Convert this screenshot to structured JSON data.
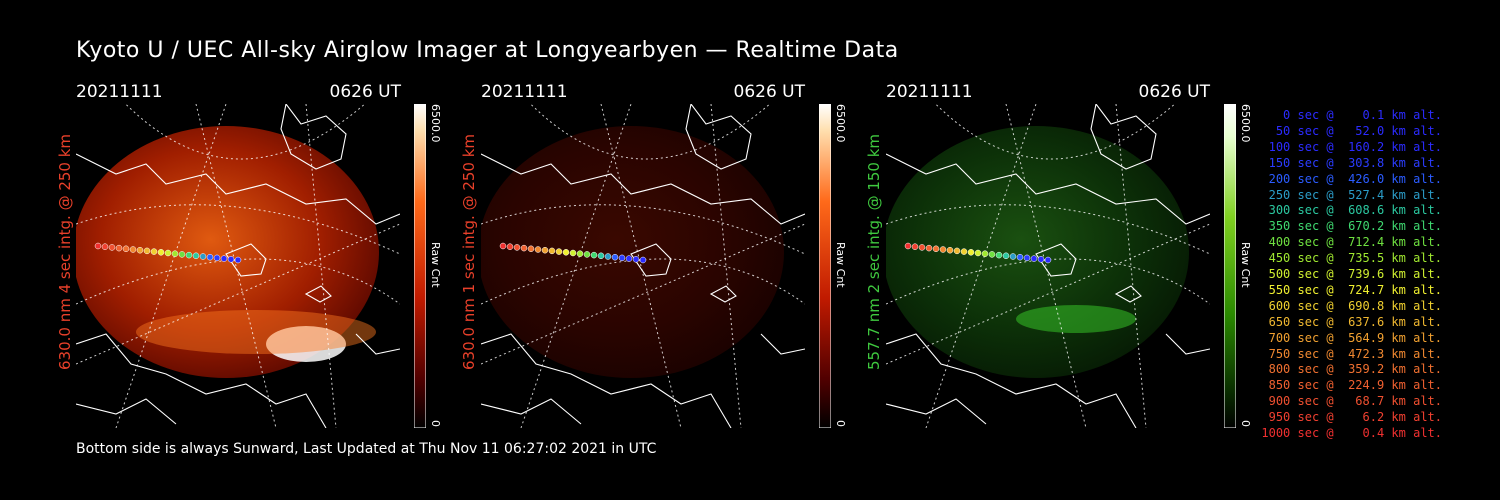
{
  "title": "Kyoto U / UEC All-sky Airglow Imager at Longyearbyen — Realtime Data",
  "footer": "Bottom side is always Sunward, Last Updated at Thu Nov 11 06:27:02 2021 in UTC",
  "panels": [
    {
      "date": "20211111",
      "time": "0626 UT",
      "side_label": "630.0 nm 4 sec intg. @ 250 km",
      "side_color": "#e8402a",
      "cbar_max": "6500.0",
      "cbar_min": "0",
      "cbar_unit": "Raw Cnt",
      "palette": "red"
    },
    {
      "date": "20211111",
      "time": "0626 UT",
      "side_label": "630.0 nm 1 sec intg. @ 250 km",
      "side_color": "#e8402a",
      "cbar_max": "6500.0",
      "cbar_min": "0",
      "cbar_unit": "Raw Cnt",
      "palette": "dimred"
    },
    {
      "date": "20211111",
      "time": "0626 UT",
      "side_label": "557.7 nm 2 sec intg. @ 150 km",
      "side_color": "#3fc83f",
      "cbar_max": "6500.0",
      "cbar_min": "0",
      "cbar_unit": "Raw Cnt",
      "palette": "green"
    }
  ],
  "legend": [
    {
      "text": "   0 sec @    0.1 km alt.",
      "color": "#2b2bff"
    },
    {
      "text": "  50 sec @   52.0 km alt.",
      "color": "#2b2bff"
    },
    {
      "text": " 100 sec @  160.2 km alt.",
      "color": "#2b2bff"
    },
    {
      "text": " 150 sec @  303.8 km alt.",
      "color": "#2b3cff"
    },
    {
      "text": " 200 sec @  426.0 km alt.",
      "color": "#2b5cff"
    },
    {
      "text": " 250 sec @  527.4 km alt.",
      "color": "#2b9cc8"
    },
    {
      "text": " 300 sec @  608.6 km alt.",
      "color": "#2bc8a0"
    },
    {
      "text": " 350 sec @  670.2 km alt.",
      "color": "#3fd870"
    },
    {
      "text": " 400 sec @  712.4 km alt.",
      "color": "#6fe040"
    },
    {
      "text": " 450 sec @  735.5 km alt.",
      "color": "#a0e830"
    },
    {
      "text": " 500 sec @  739.6 km alt.",
      "color": "#d0f030"
    },
    {
      "text": " 550 sec @  724.7 km alt.",
      "color": "#f0f030"
    },
    {
      "text": " 600 sec @  690.8 km alt.",
      "color": "#f0d030"
    },
    {
      "text": " 650 sec @  637.6 km alt.",
      "color": "#f0b830"
    },
    {
      "text": " 700 sec @  564.9 km alt.",
      "color": "#f0a030"
    },
    {
      "text": " 750 sec @  472.3 km alt.",
      "color": "#f08830"
    },
    {
      "text": " 800 sec @  359.2 km alt.",
      "color": "#f07030"
    },
    {
      "text": " 850 sec @  224.9 km alt.",
      "color": "#f06030"
    },
    {
      "text": " 900 sec @   68.7 km alt.",
      "color": "#f05030"
    },
    {
      "text": " 950 sec @    6.2 km alt.",
      "color": "#f04030"
    },
    {
      "text": "1000 sec @    0.4 km alt.",
      "color": "#f03030"
    }
  ]
}
